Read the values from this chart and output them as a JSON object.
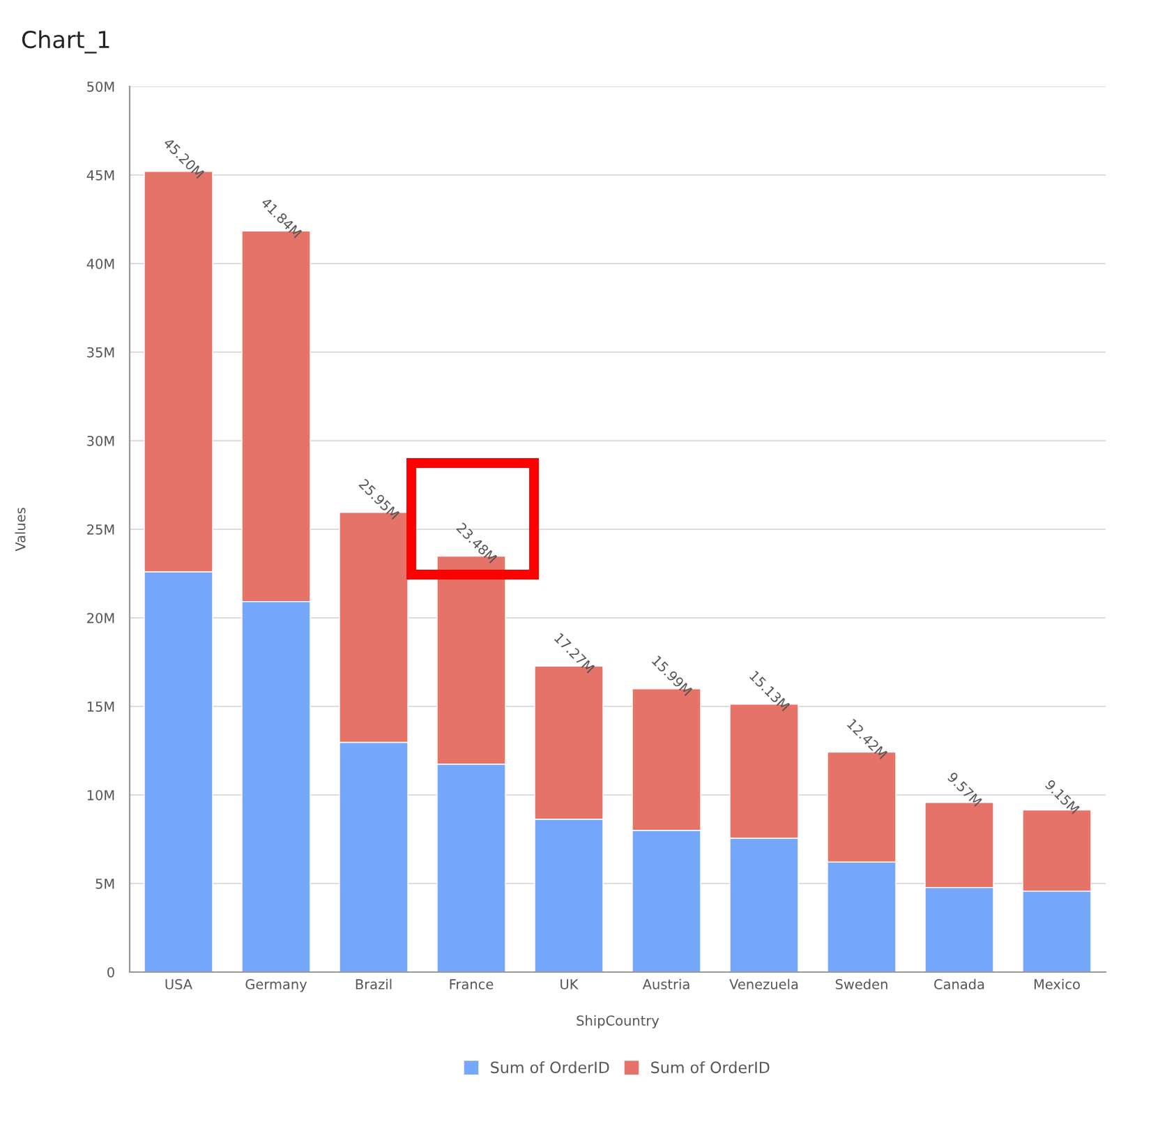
{
  "chart_data": {
    "type": "bar",
    "title": "Chart_1",
    "xlabel": "ShipCountry",
    "ylabel": "Values",
    "categories": [
      "USA",
      "Germany",
      "Brazil",
      "France",
      "UK",
      "Austria",
      "Venezuela",
      "Sweden",
      "Canada",
      "Mexico"
    ],
    "stacked": true,
    "series": [
      {
        "name": "Sum of OrderID",
        "color": "#77a7fb",
        "values": [
          22.6,
          20.92,
          12.97,
          11.74,
          8.63,
          8.0,
          7.56,
          6.21,
          4.78,
          4.57
        ]
      },
      {
        "name": "Sum of OrderID",
        "color": "#e57368",
        "values": [
          22.6,
          20.92,
          12.98,
          11.74,
          8.64,
          7.99,
          7.57,
          6.21,
          4.79,
          4.58
        ]
      }
    ],
    "totals": [
      "45.20M",
      "41.84M",
      "25.95M",
      "23.48M",
      "17.27M",
      "15.99M",
      "15.13M",
      "12.42M",
      "9.57M",
      "9.15M"
    ],
    "ylim": [
      0,
      50
    ],
    "yticks": [
      0,
      {
        "value": 5,
        "label": "5M"
      },
      {
        "value": 10,
        "label": "10M"
      },
      {
        "value": 15,
        "label": "15M"
      },
      {
        "value": 20,
        "label": "20M"
      },
      {
        "value": 25,
        "label": "25M"
      },
      {
        "value": 30,
        "label": "30M"
      },
      {
        "value": 35,
        "label": "35M"
      },
      {
        "value": 40,
        "label": "40M"
      },
      {
        "value": 45,
        "label": "45M"
      },
      {
        "value": 50,
        "label": "50M"
      }
    ],
    "grid": "y",
    "legend": "bottom"
  }
}
